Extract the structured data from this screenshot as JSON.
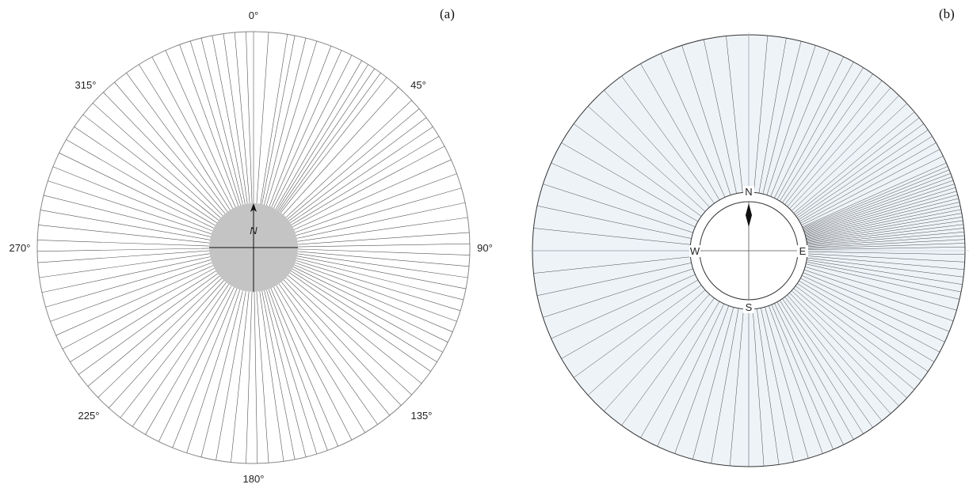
{
  "panels": [
    {
      "id": "a",
      "label": "(a)",
      "degree_labels": [
        "0°",
        "45°",
        "90°",
        "135°",
        "180°",
        "225°",
        "270°",
        "315°"
      ],
      "north_label": "N",
      "colors": {
        "line": "#555555",
        "circle": "#888888",
        "hub": "#c4c4c4",
        "axis": "#111111"
      },
      "bearings_deg": [
        0,
        4,
        9,
        11,
        14,
        17,
        21,
        24,
        27,
        30,
        32,
        34,
        36,
        38,
        42,
        47,
        50,
        53,
        56,
        59,
        62,
        66,
        70,
        74,
        78,
        82,
        86,
        89,
        92,
        95,
        98,
        101,
        104,
        107,
        110,
        113,
        116,
        119,
        122,
        125,
        129,
        133,
        137,
        141,
        145,
        149,
        153,
        157,
        160,
        163,
        166,
        169,
        172,
        176,
        179,
        182,
        186,
        190,
        194,
        198,
        202,
        206,
        210,
        214,
        218,
        222,
        226,
        230,
        234,
        238,
        242,
        246,
        250,
        254,
        258,
        262,
        266,
        269,
        272,
        276,
        280,
        284,
        288,
        292,
        296,
        300,
        304,
        308,
        312,
        316,
        320,
        324,
        328,
        332,
        336,
        340,
        343,
        346,
        349,
        352,
        355,
        358
      ]
    },
    {
      "id": "b",
      "label": "(b)",
      "compass_labels": {
        "north": "N",
        "east": "E",
        "south": "S",
        "west": "W"
      },
      "colors": {
        "line": "#4a4a4a",
        "circle": "#333333",
        "fill": "#eef3f8",
        "ring_fill": "#ffffff"
      },
      "bearings_deg": [
        0,
        5,
        10,
        14,
        18,
        22,
        26,
        29,
        32,
        35,
        38,
        41,
        44,
        47,
        50,
        52,
        54,
        56,
        58,
        60,
        62,
        64,
        66,
        67,
        68,
        69,
        70,
        71,
        72,
        73,
        74,
        75,
        76,
        77,
        78,
        79,
        80,
        81,
        82,
        83,
        84,
        85,
        86,
        87,
        88,
        89,
        91,
        93,
        95,
        97,
        99,
        101,
        103,
        106,
        109,
        112,
        115,
        118,
        121,
        124,
        127,
        130,
        133,
        136,
        139,
        142,
        145,
        148,
        151,
        154,
        157,
        160,
        164,
        168,
        172,
        176,
        180,
        185,
        190,
        195,
        200,
        205,
        210,
        216,
        222,
        228,
        234,
        240,
        246,
        252,
        258,
        264,
        270,
        276,
        282,
        288,
        294,
        300,
        306,
        312,
        318,
        324,
        330,
        336,
        342,
        348,
        354
      ]
    }
  ]
}
